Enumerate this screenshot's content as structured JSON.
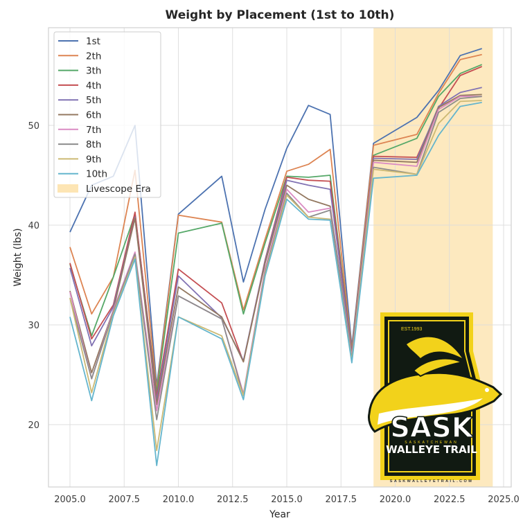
{
  "chart_data": {
    "type": "line",
    "title": "Weight by Placement (1st to 10th)",
    "xlabel": "Year",
    "ylabel": "Weight (lbs)",
    "xlim": [
      2004.0,
      2025.4
    ],
    "ylim": [
      13.9,
      59.9
    ],
    "xticks": [
      "2005.0",
      "2007.5",
      "2010.0",
      "2012.5",
      "2015.0",
      "2017.5",
      "2020.0",
      "2022.5",
      "2025.0"
    ],
    "xtick_values": [
      2005,
      2007.5,
      2010,
      2012.5,
      2015,
      2017.5,
      2020,
      2022.5,
      2025
    ],
    "yticks": [
      "20",
      "30",
      "40",
      "50"
    ],
    "ytick_values": [
      20,
      30,
      40,
      50
    ],
    "grid": true,
    "legend_position": "upper left",
    "x": [
      2005,
      2006,
      2007,
      2008,
      2009,
      2010,
      2012,
      2013,
      2014,
      2015,
      2016,
      2017,
      2018,
      2019,
      2021,
      2022,
      2023,
      2024
    ],
    "series": [
      {
        "name": "1st",
        "color": "#4c72b0",
        "values": [
          39.3,
          44.0,
          44.9,
          50.0,
          23.9,
          41.1,
          44.9,
          34.3,
          41.6,
          47.7,
          52.0,
          51.1,
          27.8,
          48.2,
          50.8,
          53.5,
          57.0,
          57.7
        ]
      },
      {
        "name": "2th",
        "color": "#dd8452",
        "values": [
          37.8,
          31.1,
          34.8,
          45.5,
          23.5,
          41.0,
          40.3,
          31.5,
          38.6,
          45.4,
          46.1,
          47.6,
          27.5,
          48.0,
          49.1,
          53.2,
          56.6,
          57.1
        ]
      },
      {
        "name": "3th",
        "color": "#55a868",
        "values": [
          36.1,
          28.9,
          34.8,
          41.1,
          23.2,
          39.2,
          40.2,
          31.1,
          38.2,
          44.9,
          44.8,
          45.0,
          27.3,
          47.0,
          48.7,
          52.9,
          55.2,
          56.1
        ]
      },
      {
        "name": "4th",
        "color": "#c44e52",
        "values": [
          36.2,
          28.6,
          32.0,
          41.3,
          22.8,
          35.6,
          32.2,
          26.3,
          36.5,
          44.8,
          44.5,
          44.4,
          27.2,
          46.9,
          46.8,
          51.7,
          55.0,
          55.9
        ]
      },
      {
        "name": "5th",
        "color": "#8172b3",
        "values": [
          35.7,
          27.9,
          31.8,
          40.8,
          22.4,
          34.9,
          30.7,
          26.4,
          36.4,
          44.5,
          44.0,
          43.6,
          27.1,
          46.7,
          46.6,
          51.9,
          53.3,
          53.8
        ]
      },
      {
        "name": "6th",
        "color": "#937860",
        "values": [
          33.4,
          25.2,
          31.5,
          40.7,
          22.0,
          33.8,
          30.8,
          26.3,
          36.2,
          44.0,
          42.6,
          41.9,
          27.0,
          46.5,
          46.3,
          51.8,
          53.0,
          53.1
        ]
      },
      {
        "name": "7th",
        "color": "#da8bc3",
        "values": [
          33.3,
          24.6,
          31.5,
          37.3,
          21.4,
          32.9,
          30.6,
          23.1,
          35.6,
          43.6,
          41.3,
          41.7,
          26.8,
          46.3,
          45.9,
          51.6,
          52.9,
          52.9
        ]
      },
      {
        "name": "8th",
        "color": "#8c8c8c",
        "values": [
          32.7,
          24.6,
          31.3,
          37.1,
          20.5,
          32.9,
          30.6,
          22.9,
          35.3,
          43.2,
          40.8,
          41.5,
          26.6,
          45.8,
          45.1,
          51.3,
          52.7,
          52.9
        ]
      },
      {
        "name": "9th",
        "color": "#ccb974",
        "values": [
          32.7,
          23.2,
          31.1,
          36.8,
          17.4,
          30.8,
          28.9,
          22.9,
          35.1,
          43.0,
          40.8,
          40.6,
          26.4,
          45.6,
          45.1,
          50.2,
          52.4,
          52.5
        ]
      },
      {
        "name": "10th",
        "color": "#64b5cd",
        "values": [
          30.8,
          22.4,
          30.9,
          36.6,
          15.9,
          30.8,
          28.6,
          22.5,
          34.9,
          42.6,
          40.6,
          40.5,
          26.2,
          44.7,
          45.0,
          49.0,
          51.9,
          52.3
        ]
      }
    ],
    "shaded_regions": [
      {
        "label": "Livescope Era",
        "x_start": 2019.0,
        "x_end": 2024.5,
        "color": "#fde5b4"
      }
    ],
    "annotations": []
  },
  "legend": {
    "items": [
      "1st",
      "2th",
      "3th",
      "4th",
      "5th",
      "6th",
      "7th",
      "8th",
      "9th",
      "10th"
    ],
    "shade_label": "Livescope Era"
  },
  "logo": {
    "est": "EST.1993",
    "name_main": "SASK",
    "name_sub": "SASKATCHEWAN",
    "name_trail": "WALLEYE TRAIL",
    "url": "SASKWALLEYETRAIL.COM",
    "colors": {
      "dark": "#111a12",
      "yellow": "#f2d21b",
      "white": "#ffffff"
    }
  }
}
